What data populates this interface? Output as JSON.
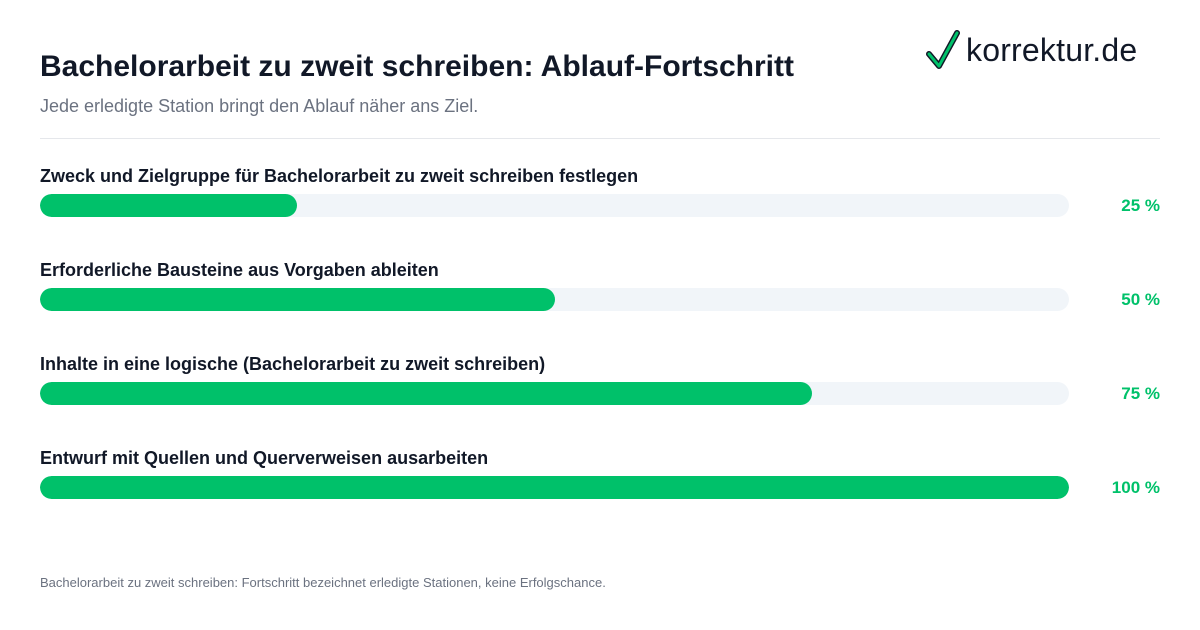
{
  "header": {
    "title": "Bachelorarbeit zu zweit schreiben: Ablauf-Fortschritt",
    "subtitle": "Jede erledigte Station bringt den Ablauf näher ans Ziel."
  },
  "logo": {
    "text": "korrektur.de",
    "icon": "checkmark-icon"
  },
  "colors": {
    "accent": "#00c16a",
    "track": "#f1f5f9",
    "text": "#111827",
    "muted": "#6b7280"
  },
  "chart_data": {
    "type": "bar",
    "orientation": "horizontal",
    "categories": [
      "Zweck und Zielgruppe für Bachelorarbeit zu zweit schreiben festlegen",
      "Erforderliche Bausteine aus Vorgaben ableiten",
      "Inhalte in eine logische (Bachelorarbeit zu zweit schreiben)",
      "Entwurf mit Quellen und Querverweisen ausarbeiten"
    ],
    "values": [
      25,
      50,
      75,
      100
    ],
    "value_labels": [
      "25 %",
      "50 %",
      "75 %",
      "100 %"
    ],
    "xlim": [
      0,
      100
    ],
    "grid": false,
    "legend": "none"
  },
  "footnote": "Bachelorarbeit zu zweit schreiben: Fortschritt bezeichnet erledigte Stationen, keine Erfolgschance."
}
